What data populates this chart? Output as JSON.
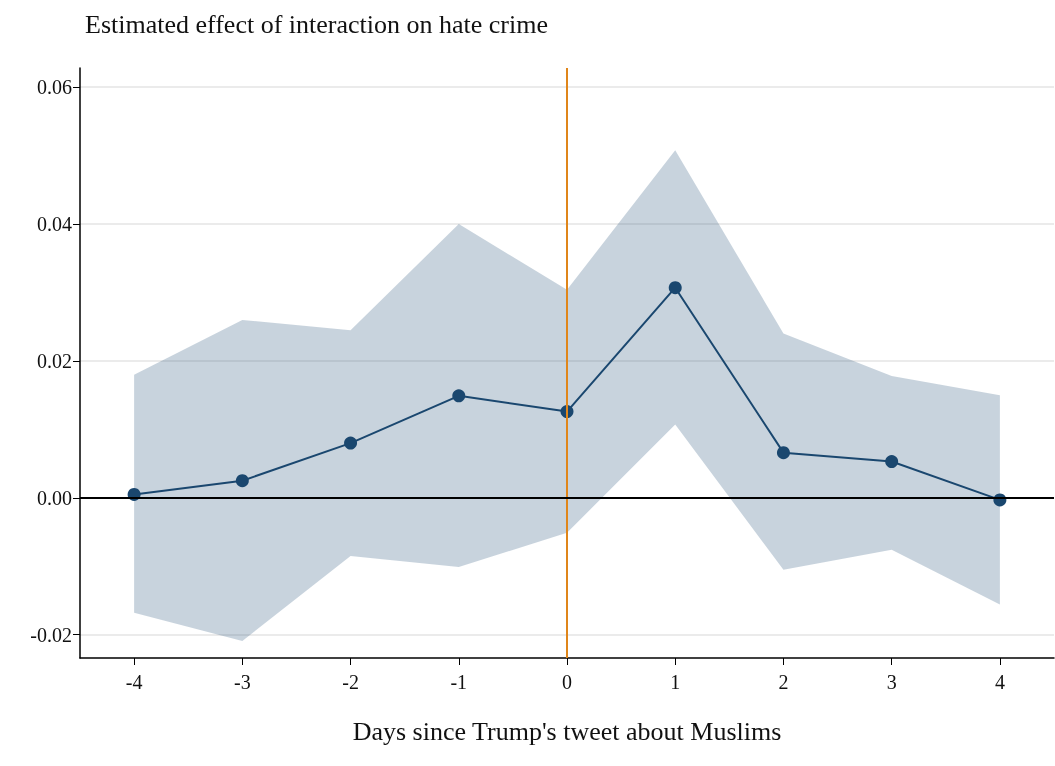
{
  "chart_data": {
    "type": "line",
    "title": "Estimated effect of interaction on hate crime",
    "xlabel": "Days since Trump's tweet about Muslims",
    "x": [
      -4,
      -3,
      -2,
      -1,
      0,
      1,
      2,
      3,
      4
    ],
    "series": [
      {
        "color": "#1a476f",
        "values": [
          0.0005,
          0.0025,
          0.008,
          0.0149,
          0.0126,
          0.0307,
          0.0066,
          0.0053,
          -0.0003
        ],
        "lower": [
          -0.0168,
          -0.0209,
          -0.0085,
          -0.0101,
          -0.0051,
          0.0107,
          -0.0105,
          -0.0076,
          -0.0156
        ],
        "upper": [
          0.018,
          0.026,
          0.0245,
          0.04,
          0.0304,
          0.0508,
          0.024,
          0.0178,
          0.015
        ]
      }
    ],
    "xlim": [
      -4.5,
      4.5
    ],
    "xticks": [
      -4,
      -3,
      -2,
      -1,
      0,
      1,
      2,
      3,
      4
    ],
    "ylim": [
      -0.0234,
      0.0628
    ],
    "yticks": [
      {
        "value": -0.02,
        "label": "-0.02"
      },
      {
        "value": 0,
        "label": "0.00"
      },
      {
        "value": 0.02,
        "label": "0.02"
      },
      {
        "value": 0.04,
        "label": "0.04"
      },
      {
        "value": 0.06,
        "label": "0.06"
      }
    ],
    "ref_lines": [
      {
        "axis": "x",
        "value": 0,
        "color": "#e0861a"
      },
      {
        "axis": "y",
        "value": 0,
        "color": "#000000"
      }
    ],
    "grid": "y",
    "marker": "circle",
    "line_style": "solid"
  }
}
